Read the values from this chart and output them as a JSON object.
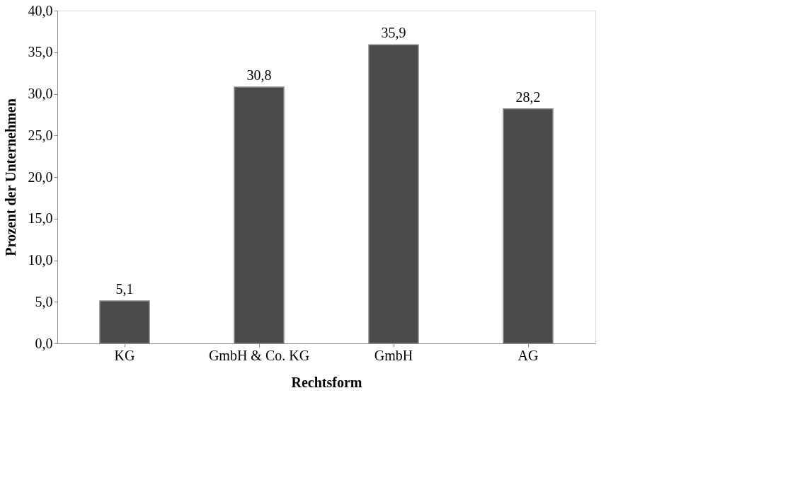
{
  "chart_data": {
    "type": "bar",
    "xlabel": "Rechtsform",
    "ylabel": "Prozent der Unternehmen",
    "categories": [
      "KG",
      "GmbH & Co. KG",
      "GmbH",
      "AG"
    ],
    "values": [
      5.1,
      30.8,
      35.9,
      28.2
    ],
    "value_labels": [
      "5,1",
      "30,8",
      "35,9",
      "28,2"
    ],
    "color": "#4a4a4a",
    "ylim": [
      0,
      40
    ],
    "yticks": [
      {
        "value": 0,
        "label": "0,0"
      },
      {
        "value": 5,
        "label": "5,0"
      },
      {
        "value": 10,
        "label": "10,0"
      },
      {
        "value": 15,
        "label": "15,0"
      },
      {
        "value": 20,
        "label": "20,0"
      },
      {
        "value": 25,
        "label": "25,0"
      },
      {
        "value": 30,
        "label": "30,0"
      },
      {
        "value": 35,
        "label": "35,0"
      },
      {
        "value": 40,
        "label": "40,0"
      }
    ],
    "grid": false
  }
}
